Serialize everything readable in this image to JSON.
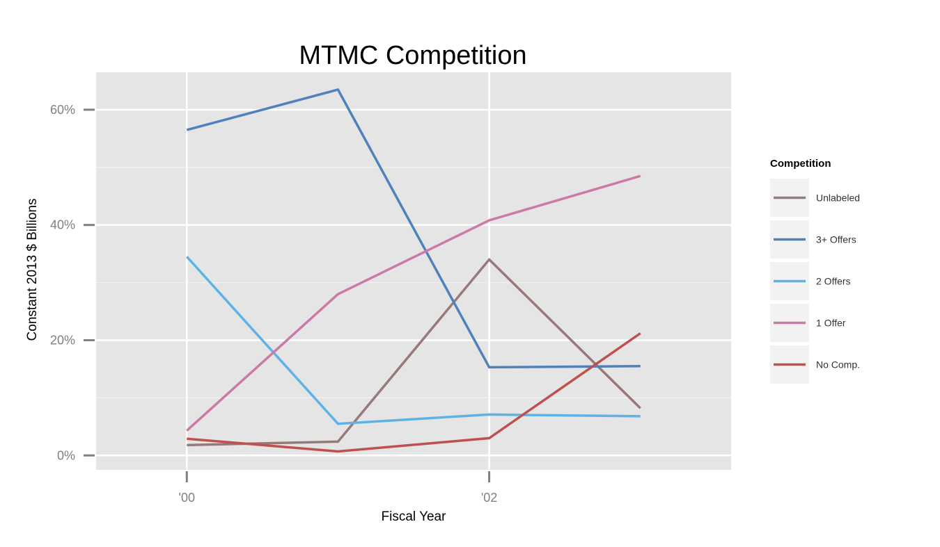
{
  "chart_data": {
    "type": "line",
    "title": "MTMC Competition",
    "xlabel": "Fiscal Year",
    "ylabel": "Constant 2013 $ Billions",
    "x": [
      2000,
      2001,
      2002,
      2003
    ],
    "xlim": [
      1999.4,
      2003.6
    ],
    "xticks": [
      2000,
      2002
    ],
    "xtick_labels": [
      "'00",
      "'02"
    ],
    "ylim": [
      -2.5,
      66.5
    ],
    "yticks": [
      0,
      20,
      40,
      60
    ],
    "ytick_labels": [
      "0%",
      "20%",
      "40%",
      "60%"
    ],
    "grid": true,
    "legend": {
      "title": "Competition",
      "position": "right"
    },
    "series": [
      {
        "name": "Unlabeled",
        "color": "#947a78",
        "values": [
          1.8,
          2.4,
          34.0,
          8.2
        ]
      },
      {
        "name": "3+ Offers",
        "color": "#4f81bd",
        "values": [
          56.5,
          63.5,
          15.3,
          15.5
        ]
      },
      {
        "name": "2 Offers",
        "color": "#5eb3e6",
        "values": [
          34.5,
          5.5,
          7.1,
          6.8
        ]
      },
      {
        "name": "1 Offer",
        "color": "#cc79a7",
        "values": [
          4.3,
          28.0,
          40.8,
          48.5
        ]
      },
      {
        "name": "No Comp.",
        "color": "#c0504d",
        "values": [
          2.9,
          0.7,
          3.0,
          21.2
        ]
      }
    ]
  }
}
